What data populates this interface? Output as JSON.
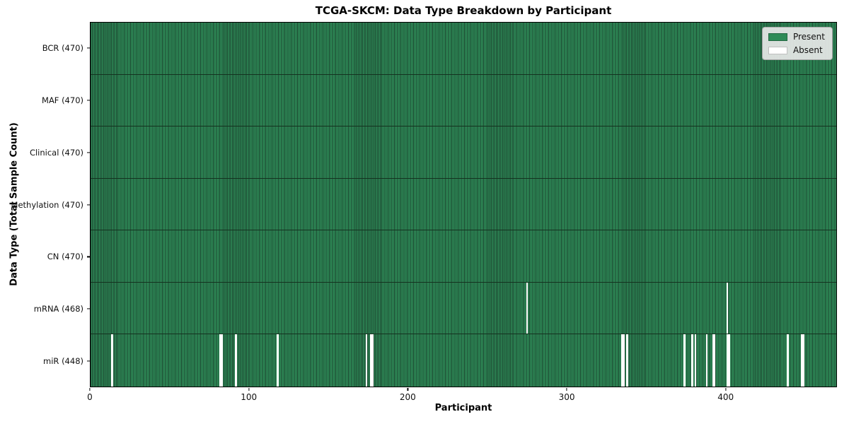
{
  "chart_data": {
    "type": "heatmap",
    "title": "TCGA-SKCM: Data Type Breakdown by Participant",
    "xlabel": "Participant",
    "ylabel": "Data Type (Total Sample Count)",
    "x_range": [
      0,
      470
    ],
    "n_participants": 470,
    "x_ticks": [
      0,
      100,
      200,
      300,
      400
    ],
    "legend_position": "upper right",
    "grid": false,
    "legend": [
      {
        "label": "Present",
        "color": "#2e8b57"
      },
      {
        "label": "Absent",
        "color": "#ffffff"
      }
    ],
    "rows": [
      {
        "label": "BCR (470)",
        "data_type": "BCR",
        "total": 470,
        "absent_participants": []
      },
      {
        "label": "MAF (470)",
        "data_type": "MAF",
        "total": 470,
        "absent_participants": []
      },
      {
        "label": "Clinical (470)",
        "data_type": "Clinical",
        "total": 470,
        "absent_participants": []
      },
      {
        "label": "Methylation (470)",
        "data_type": "Methylation",
        "total": 470,
        "absent_participants": []
      },
      {
        "label": "CN (470)",
        "data_type": "CN",
        "total": 470,
        "absent_participants": []
      },
      {
        "label": "mRNA (468)",
        "data_type": "mRNA",
        "total": 468,
        "absent_participants": [
          274,
          400
        ]
      },
      {
        "label": "miR (448)",
        "data_type": "miR",
        "total": 448,
        "absent_participants": [
          13,
          81,
          82,
          91,
          117,
          173,
          176,
          177,
          334,
          335,
          337,
          373,
          378,
          380,
          387,
          391,
          392,
          400,
          401,
          438,
          447,
          448
        ]
      }
    ],
    "colors": {
      "present": "#2e8b57",
      "present_edge": "#1c4630",
      "absent": "#ffffff",
      "row_divider": "#14321f",
      "plot_border": "#000000",
      "legend_bg": "#e8e8e8",
      "legend_border": "#a8a8a8"
    }
  }
}
